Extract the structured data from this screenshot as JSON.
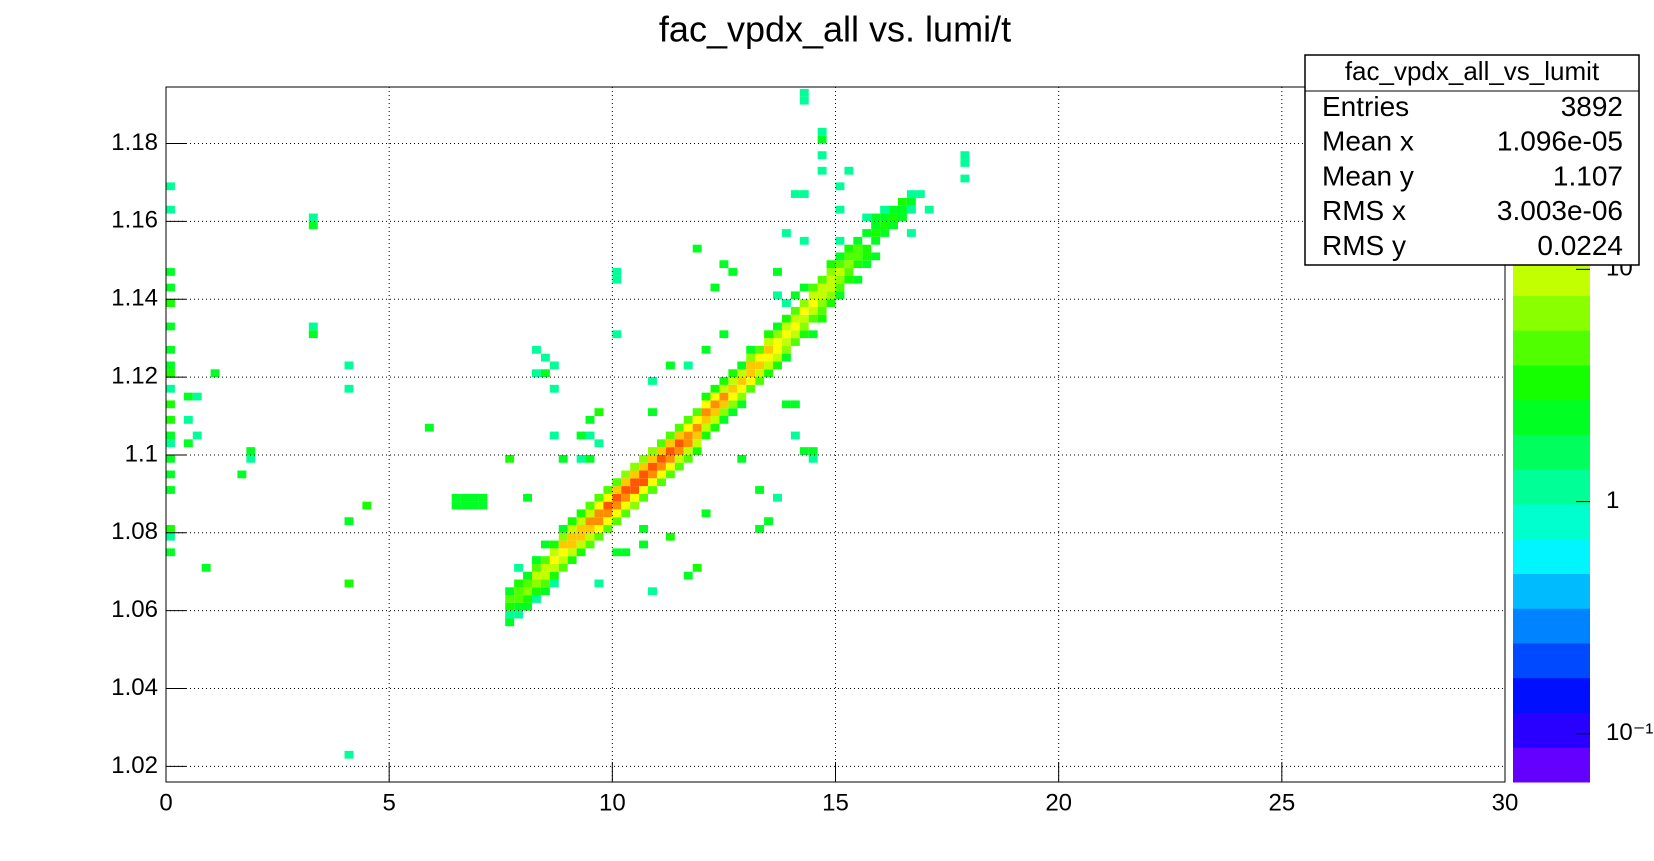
{
  "chart_data": {
    "type": "heatmap2d",
    "title": "fac_vpdx_all vs. lumi/t",
    "xlim": [
      0,
      30
    ],
    "xticks": [
      0,
      5,
      10,
      15,
      20,
      25,
      30
    ],
    "ylim": [
      1.016,
      1.1945
    ],
    "yticks": [
      1.02,
      1.04,
      1.06,
      1.08,
      1.1,
      1.12,
      1.14,
      1.16,
      1.18
    ],
    "grid": true,
    "xbin_width": 0.2,
    "ybin_width": 0.002,
    "zlog": true,
    "zlim": [
      0.062,
      61
    ],
    "levels": 20,
    "zticks": [
      {
        "value": 0.1,
        "label": "10⁻¹"
      },
      1,
      10
    ],
    "columns": [
      {
        "x": 7.6,
        "y": [
          1.056,
          1.058,
          1.06,
          1.062,
          1.064,
          1.098
        ],
        "values": [
          2,
          1,
          3,
          4,
          2,
          3
        ]
      },
      {
        "x": 7.8,
        "y": [
          1.058,
          1.06,
          1.062,
          1.064,
          1.066,
          1.07
        ],
        "values": [
          1,
          2,
          4,
          5,
          3,
          1
        ]
      },
      {
        "x": 8.0,
        "y": [
          1.06,
          1.062,
          1.064,
          1.066,
          1.068,
          1.088
        ],
        "values": [
          2,
          3,
          6,
          4,
          2,
          2
        ]
      },
      {
        "x": 8.2,
        "y": [
          1.062,
          1.064,
          1.066,
          1.068,
          1.07,
          1.072,
          1.12,
          1.126
        ],
        "values": [
          1,
          3,
          6,
          8,
          4,
          2,
          1,
          1
        ]
      },
      {
        "x": 8.4,
        "y": [
          1.064,
          1.066,
          1.068,
          1.07,
          1.072,
          1.076,
          1.124,
          1.12
        ],
        "values": [
          2,
          4,
          8,
          10,
          5,
          2,
          1,
          2
        ]
      },
      {
        "x": 8.6,
        "y": [
          1.066,
          1.068,
          1.07,
          1.072,
          1.074,
          1.076,
          1.122,
          1.116,
          1.104
        ],
        "values": [
          1,
          3,
          8,
          12,
          8,
          3,
          1,
          1,
          1
        ]
      },
      {
        "x": 8.8,
        "y": [
          1.07,
          1.072,
          1.074,
          1.076,
          1.078,
          1.08,
          1.098
        ],
        "values": [
          4,
          9,
          14,
          16,
          6,
          2,
          2
        ]
      },
      {
        "x": 9.0,
        "y": [
          1.072,
          1.074,
          1.076,
          1.078,
          1.08,
          1.082
        ],
        "values": [
          3,
          8,
          16,
          18,
          8,
          3
        ]
      },
      {
        "x": 9.2,
        "y": [
          1.074,
          1.076,
          1.078,
          1.08,
          1.082,
          1.084,
          1.104,
          1.098
        ],
        "values": [
          3,
          8,
          18,
          20,
          10,
          3,
          2,
          1
        ]
      },
      {
        "x": 9.4,
        "y": [
          1.076,
          1.078,
          1.08,
          1.082,
          1.084,
          1.086,
          1.108,
          1.104,
          1.098
        ],
        "values": [
          4,
          10,
          20,
          24,
          10,
          4,
          2,
          1,
          2
        ]
      },
      {
        "x": 9.6,
        "y": [
          1.078,
          1.08,
          1.082,
          1.084,
          1.086,
          1.088,
          1.11,
          1.102,
          1.066
        ],
        "values": [
          4,
          12,
          24,
          28,
          12,
          4,
          3,
          1,
          1
        ]
      },
      {
        "x": 9.8,
        "y": [
          1.08,
          1.082,
          1.084,
          1.086,
          1.088,
          1.09
        ],
        "values": [
          5,
          12,
          26,
          32,
          14,
          5
        ]
      },
      {
        "x": 10.0,
        "y": [
          1.082,
          1.084,
          1.086,
          1.088,
          1.09,
          1.092,
          1.13,
          1.144,
          1.146,
          1.074
        ],
        "values": [
          5,
          14,
          30,
          36,
          16,
          5,
          1,
          1,
          1,
          2
        ]
      },
      {
        "x": 10.2,
        "y": [
          1.084,
          1.086,
          1.088,
          1.09,
          1.092,
          1.094,
          1.074
        ],
        "values": [
          5,
          14,
          30,
          38,
          18,
          6,
          2
        ]
      },
      {
        "x": 10.4,
        "y": [
          1.086,
          1.088,
          1.09,
          1.092,
          1.094,
          1.096
        ],
        "values": [
          6,
          14,
          32,
          40,
          18,
          6
        ]
      },
      {
        "x": 10.6,
        "y": [
          1.088,
          1.09,
          1.092,
          1.094,
          1.096,
          1.098,
          1.08,
          1.076
        ],
        "values": [
          5,
          14,
          32,
          40,
          20,
          6,
          2,
          2
        ]
      },
      {
        "x": 10.8,
        "y": [
          1.09,
          1.092,
          1.094,
          1.096,
          1.098,
          1.1,
          1.118,
          1.11,
          1.064
        ],
        "values": [
          5,
          14,
          30,
          38,
          20,
          6,
          1,
          2,
          1
        ]
      },
      {
        "x": 11.0,
        "y": [
          1.092,
          1.094,
          1.096,
          1.098,
          1.1,
          1.102
        ],
        "values": [
          5,
          12,
          28,
          36,
          18,
          5
        ]
      },
      {
        "x": 11.2,
        "y": [
          1.094,
          1.096,
          1.098,
          1.1,
          1.102,
          1.104,
          1.122,
          1.078
        ],
        "values": [
          4,
          12,
          28,
          36,
          18,
          5,
          2,
          3
        ]
      },
      {
        "x": 11.4,
        "y": [
          1.096,
          1.098,
          1.1,
          1.102,
          1.104,
          1.106
        ],
        "values": [
          4,
          10,
          24,
          32,
          16,
          5
        ]
      },
      {
        "x": 11.6,
        "y": [
          1.098,
          1.1,
          1.102,
          1.104,
          1.106,
          1.108,
          1.122,
          1.068
        ],
        "values": [
          4,
          10,
          22,
          30,
          14,
          4,
          1,
          2
        ]
      },
      {
        "x": 11.8,
        "y": [
          1.1,
          1.102,
          1.104,
          1.106,
          1.108,
          1.11,
          1.152,
          1.07
        ],
        "values": [
          3,
          9,
          20,
          28,
          14,
          4,
          2,
          3
        ]
      },
      {
        "x": 12.0,
        "y": [
          1.104,
          1.106,
          1.108,
          1.11,
          1.112,
          1.114,
          1.126,
          1.084
        ],
        "values": [
          3,
          8,
          18,
          26,
          12,
          3,
          2,
          2
        ]
      },
      {
        "x": 12.2,
        "y": [
          1.106,
          1.108,
          1.11,
          1.112,
          1.114,
          1.116,
          1.142
        ],
        "values": [
          3,
          8,
          18,
          24,
          12,
          3,
          2
        ]
      },
      {
        "x": 12.4,
        "y": [
          1.108,
          1.11,
          1.112,
          1.114,
          1.116,
          1.118,
          1.13,
          1.148
        ],
        "values": [
          2,
          7,
          16,
          22,
          10,
          3,
          2,
          2
        ]
      },
      {
        "x": 12.6,
        "y": [
          1.11,
          1.112,
          1.114,
          1.116,
          1.118,
          1.12,
          1.146
        ],
        "values": [
          2,
          6,
          14,
          20,
          10,
          3,
          2
        ]
      },
      {
        "x": 12.8,
        "y": [
          1.112,
          1.114,
          1.116,
          1.118,
          1.12,
          1.122,
          1.098
        ],
        "values": [
          2,
          6,
          14,
          20,
          10,
          2,
          2
        ]
      },
      {
        "x": 13.0,
        "y": [
          1.116,
          1.118,
          1.12,
          1.122,
          1.124,
          1.126
        ],
        "values": [
          5,
          12,
          18,
          16,
          6,
          2
        ]
      },
      {
        "x": 13.2,
        "y": [
          1.118,
          1.12,
          1.122,
          1.124,
          1.126,
          1.09,
          1.08
        ],
        "values": [
          4,
          10,
          16,
          14,
          5,
          2,
          2
        ]
      },
      {
        "x": 13.4,
        "y": [
          1.12,
          1.122,
          1.124,
          1.126,
          1.128,
          1.13,
          1.082
        ],
        "values": [
          3,
          8,
          14,
          16,
          8,
          3,
          2
        ]
      },
      {
        "x": 13.6,
        "y": [
          1.122,
          1.124,
          1.126,
          1.128,
          1.13,
          1.132,
          1.088,
          1.146,
          1.14
        ],
        "values": [
          3,
          8,
          12,
          14,
          7,
          2,
          1,
          2,
          1
        ]
      },
      {
        "x": 13.8,
        "y": [
          1.124,
          1.126,
          1.128,
          1.13,
          1.132,
          1.134,
          1.138,
          1.112,
          1.156
        ],
        "values": [
          2,
          6,
          10,
          14,
          8,
          3,
          1,
          2,
          1
        ]
      },
      {
        "x": 14.0,
        "y": [
          1.128,
          1.13,
          1.132,
          1.134,
          1.136,
          1.14,
          1.112,
          1.166,
          1.104
        ],
        "values": [
          5,
          8,
          12,
          8,
          4,
          2,
          2,
          1,
          1
        ]
      },
      {
        "x": 14.2,
        "y": [
          1.13,
          1.132,
          1.134,
          1.136,
          1.138,
          1.142,
          1.154,
          1.166,
          1.1,
          1.19,
          1.192
        ],
        "values": [
          3,
          6,
          10,
          12,
          6,
          2,
          1,
          1,
          2,
          1,
          1
        ]
      },
      {
        "x": 14.4,
        "y": [
          1.13,
          1.134,
          1.136,
          1.138,
          1.14,
          1.142,
          1.1,
          1.098
        ],
        "values": [
          2,
          5,
          8,
          12,
          8,
          4,
          2,
          1
        ]
      },
      {
        "x": 14.6,
        "y": [
          1.134,
          1.136,
          1.138,
          1.14,
          1.142,
          1.144,
          1.172,
          1.176,
          1.18,
          1.182
        ],
        "values": [
          3,
          4,
          7,
          10,
          10,
          5,
          1,
          1,
          2,
          1
        ]
      },
      {
        "x": 14.8,
        "y": [
          1.138,
          1.14,
          1.142,
          1.144,
          1.146,
          1.148
        ],
        "values": [
          3,
          6,
          8,
          9,
          6,
          3
        ]
      },
      {
        "x": 15.0,
        "y": [
          1.14,
          1.142,
          1.144,
          1.146,
          1.148,
          1.15,
          1.168,
          1.162,
          1.154
        ],
        "values": [
          2,
          4,
          7,
          8,
          5,
          2,
          1,
          1,
          1
        ]
      },
      {
        "x": 15.2,
        "y": [
          1.144,
          1.146,
          1.148,
          1.15,
          1.152,
          1.172
        ],
        "values": [
          3,
          4,
          6,
          5,
          3,
          1
        ]
      },
      {
        "x": 15.4,
        "y": [
          1.144,
          1.148,
          1.15,
          1.152,
          1.154
        ],
        "values": [
          2,
          3,
          4,
          4,
          2
        ]
      },
      {
        "x": 15.6,
        "y": [
          1.148,
          1.15,
          1.152,
          1.156,
          1.16
        ],
        "values": [
          2,
          3,
          3,
          2,
          1
        ]
      },
      {
        "x": 15.8,
        "y": [
          1.15,
          1.154,
          1.156,
          1.158,
          1.16
        ],
        "values": [
          2,
          2,
          3,
          2,
          2
        ]
      },
      {
        "x": 16.0,
        "y": [
          1.156,
          1.158,
          1.16,
          1.162
        ],
        "values": [
          2,
          3,
          2,
          1
        ]
      },
      {
        "x": 16.2,
        "y": [
          1.158,
          1.16,
          1.162
        ],
        "values": [
          2,
          3,
          2
        ]
      },
      {
        "x": 16.4,
        "y": [
          1.16,
          1.162,
          1.164
        ],
        "values": [
          2,
          2,
          3
        ]
      },
      {
        "x": 16.6,
        "y": [
          1.162,
          1.164,
          1.166,
          1.156
        ],
        "values": [
          1,
          2,
          1,
          1
        ]
      },
      {
        "x": 16.8,
        "y": [
          1.166
        ],
        "values": [
          1
        ]
      },
      {
        "x": 17.0,
        "y": [
          1.162
        ],
        "values": [
          1
        ]
      },
      {
        "x": 17.8,
        "y": [
          1.176,
          1.174,
          1.17
        ],
        "values": [
          1,
          1,
          1
        ]
      },
      {
        "x": 0.0,
        "y": [
          1.168,
          1.162,
          1.146,
          1.142,
          1.138,
          1.132,
          1.126,
          1.122,
          1.12,
          1.116,
          1.112,
          1.108,
          1.104,
          1.102,
          1.098,
          1.094,
          1.09,
          1.08,
          1.078,
          1.074
        ],
        "values": [
          1,
          1,
          2,
          2,
          3,
          2,
          2,
          2,
          3,
          1,
          3,
          3,
          2,
          1,
          2,
          2,
          2,
          3,
          1,
          2
        ]
      },
      {
        "x": 0.4,
        "y": [
          1.114,
          1.108,
          1.102
        ],
        "values": [
          2,
          1,
          2
        ]
      },
      {
        "x": 0.6,
        "y": [
          1.114,
          1.104
        ],
        "values": [
          1,
          1
        ]
      },
      {
        "x": 0.8,
        "y": [
          1.07
        ],
        "values": [
          2
        ]
      },
      {
        "x": 1.0,
        "y": [
          1.12
        ],
        "values": [
          2
        ]
      },
      {
        "x": 1.6,
        "y": [
          1.094
        ],
        "values": [
          2
        ]
      },
      {
        "x": 1.8,
        "y": [
          1.1,
          1.098
        ],
        "values": [
          2,
          1
        ]
      },
      {
        "x": 3.2,
        "y": [
          1.16,
          1.158,
          1.132,
          1.13
        ],
        "values": [
          1,
          2,
          1,
          2
        ]
      },
      {
        "x": 4.0,
        "y": [
          1.122,
          1.116,
          1.082,
          1.066,
          1.022
        ],
        "values": [
          1,
          1,
          2,
          3,
          1
        ]
      },
      {
        "x": 4.4,
        "y": [
          1.086
        ],
        "values": [
          3
        ]
      },
      {
        "x": 5.8,
        "y": [
          1.106
        ],
        "values": [
          2
        ]
      },
      {
        "x": 6.4,
        "y": [
          1.088,
          1.086
        ],
        "values": [
          2,
          2
        ]
      },
      {
        "x": 6.6,
        "y": [
          1.088,
          1.086
        ],
        "values": [
          2,
          2
        ]
      },
      {
        "x": 6.8,
        "y": [
          1.088,
          1.086
        ],
        "values": [
          2,
          2
        ]
      },
      {
        "x": 7.0,
        "y": [
          1.088,
          1.086
        ],
        "values": [
          2,
          2
        ]
      }
    ],
    "stats": {
      "title": "fac_vpdx_all_vs_lumit",
      "rows": [
        [
          "Entries",
          "3892"
        ],
        [
          "Mean x",
          "1.096e-05"
        ],
        [
          "Mean y",
          "1.107"
        ],
        [
          "RMS x",
          "3.003e-06"
        ],
        [
          "RMS y",
          "0.0224"
        ]
      ]
    }
  }
}
